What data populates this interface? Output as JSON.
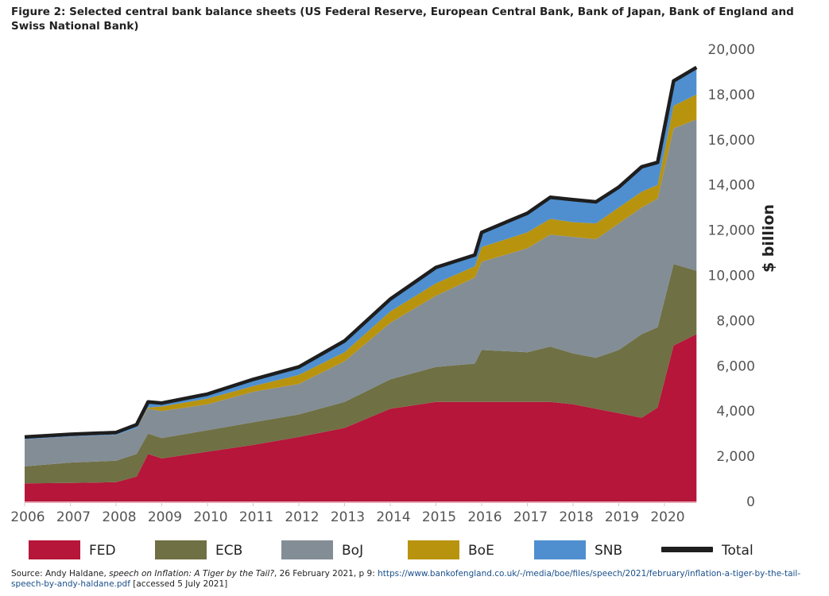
{
  "title": "Figure 2: Selected central bank balance sheets (US Federal Reserve, European Central Bank, Bank of Japan, Bank of England and Swiss National Bank)",
  "source": {
    "prefix": "Source: Andy Haldane, ",
    "italic": "speech on Inflation: A Tiger by the Tail?",
    "middle": ", 26 February 2021, p 9: ",
    "link": "https://www.bankofengland.co.uk/-/media/boe/files/speech/2021/february/inflation-a-tiger-by-the-tail-speech-by-andy-haldane.pdf",
    "suffix": " [accessed 5 July 2021]"
  },
  "chart_data": {
    "type": "area",
    "stacked": true,
    "title": "Figure 2: Selected central bank balance sheets",
    "xlabel": "",
    "ylabel": "$ billion",
    "xlim": [
      2006,
      2020.7
    ],
    "ylim": [
      0,
      20000
    ],
    "x_ticks": [
      "2006",
      "2007",
      "2008",
      "2009",
      "2010",
      "2011",
      "2012",
      "2013",
      "2014",
      "2015",
      "2016",
      "2017",
      "2018",
      "2019",
      "2020"
    ],
    "y_ticks": [
      "0",
      "2,000",
      "4,000",
      "6,000",
      "8,000",
      "10,000",
      "12,000",
      "14,000",
      "16,000",
      "18,000",
      "20,000"
    ],
    "y_axis_side": "right",
    "grid": false,
    "legend_position": "bottom",
    "x": [
      2006.0,
      2007.0,
      2008.0,
      2008.45,
      2008.7,
      2009.0,
      2010.0,
      2011.0,
      2012.0,
      2013.0,
      2014.0,
      2015.0,
      2015.85,
      2016.0,
      2017.0,
      2017.5,
      2018.0,
      2018.5,
      2019.0,
      2019.5,
      2019.85,
      2020.2,
      2020.7
    ],
    "series": [
      {
        "name": "FED",
        "color": "#b5163a",
        "values": [
          800,
          820,
          850,
          1100,
          2100,
          1900,
          2200,
          2500,
          2850,
          3250,
          4100,
          4400,
          4400,
          4400,
          4400,
          4400,
          4300,
          4100,
          3900,
          3700,
          4150,
          6900,
          7400
        ]
      },
      {
        "name": "ECB",
        "color": "#6f7044",
        "values": [
          750,
          900,
          950,
          1000,
          900,
          900,
          950,
          1000,
          1000,
          1150,
          1300,
          1550,
          1700,
          2300,
          2200,
          2450,
          2250,
          2250,
          2800,
          3700,
          3550,
          3600,
          2800
        ]
      },
      {
        "name": "BoJ",
        "color": "#838d96",
        "values": [
          1200,
          1150,
          1150,
          1150,
          1100,
          1200,
          1150,
          1350,
          1350,
          1800,
          2500,
          3150,
          3800,
          3900,
          4600,
          4950,
          5150,
          5250,
          5600,
          5600,
          5700,
          6000,
          6700
        ]
      },
      {
        "name": "BoE",
        "color": "#b8930e",
        "values": [
          0,
          0,
          0,
          0,
          50,
          200,
          250,
          250,
          400,
          400,
          500,
          550,
          500,
          650,
          700,
          700,
          650,
          700,
          700,
          700,
          600,
          1000,
          1100
        ]
      },
      {
        "name": "SNB",
        "color": "#4f8fcf",
        "values": [
          100,
          100,
          100,
          150,
          250,
          150,
          200,
          300,
          350,
          500,
          550,
          700,
          500,
          650,
          850,
          950,
          1000,
          950,
          900,
          1100,
          1000,
          1100,
          1200
        ]
      }
    ],
    "total": {
      "name": "Total",
      "color": "#1e1e1e",
      "values": [
        2850,
        2970,
        3050,
        3400,
        4400,
        4350,
        4750,
        5400,
        5950,
        7100,
        8950,
        10350,
        10900,
        11900,
        12750,
        13450,
        13350,
        13250,
        13900,
        14800,
        15000,
        18600,
        19200
      ]
    }
  }
}
